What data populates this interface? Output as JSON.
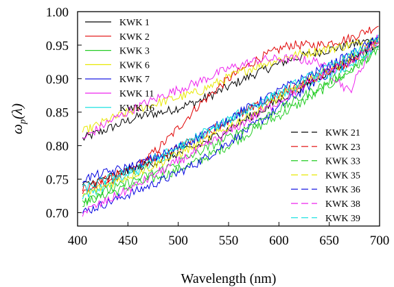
{
  "chart_data": {
    "type": "line",
    "title": "",
    "xlabel": "Wavelength (nm)",
    "ylabel": "ω_p(λ)",
    "ylabel_parts": {
      "symbol": "ω",
      "subscript": "p",
      "argument": "(λ)"
    },
    "xlim": [
      400,
      700
    ],
    "ylim": [
      0.68,
      1.0
    ],
    "xticks": [
      400,
      450,
      500,
      550,
      600,
      650,
      700
    ],
    "yticks": [
      0.7,
      0.75,
      0.8,
      0.85,
      0.9,
      0.95,
      1.0
    ],
    "grid": false,
    "legends": [
      {
        "placement": "top-left",
        "entries": [
          "KWK 1",
          "KWK 2",
          "KWK 3",
          "KWK 6",
          "KWK 7",
          "KWK 11",
          "KWK 16"
        ]
      },
      {
        "placement": "bottom-right",
        "entries": [
          "KWK 21",
          "KWK 23",
          "KWK 33",
          "KWK 35",
          "KWK 36",
          "KWK 38",
          "KWK 39"
        ]
      }
    ],
    "x": [
      405,
      430,
      460,
      490,
      520,
      550,
      580,
      610,
      640,
      670,
      700
    ],
    "series": [
      {
        "name": "KWK 1",
        "color": "#000000",
        "dash": "solid",
        "values": [
          0.81,
          0.825,
          0.843,
          0.852,
          0.866,
          0.888,
          0.91,
          0.928,
          0.94,
          0.95,
          0.96
        ]
      },
      {
        "name": "KWK 2",
        "color": "#e00000",
        "dash": "solid",
        "values": [
          0.73,
          0.747,
          0.768,
          0.81,
          0.86,
          0.9,
          0.93,
          0.95,
          0.95,
          0.96,
          0.98
        ]
      },
      {
        "name": "KWK 3",
        "color": "#22cc22",
        "dash": "solid",
        "values": [
          0.715,
          0.728,
          0.743,
          0.758,
          0.777,
          0.8,
          0.828,
          0.853,
          0.88,
          0.91,
          0.945
        ]
      },
      {
        "name": "KWK 6",
        "color": "#e8e800",
        "dash": "solid",
        "values": [
          0.82,
          0.838,
          0.855,
          0.868,
          0.88,
          0.902,
          0.92,
          0.933,
          0.942,
          0.95,
          0.96
        ]
      },
      {
        "name": "KWK 7",
        "color": "#0000e0",
        "dash": "solid",
        "values": [
          0.7,
          0.715,
          0.733,
          0.752,
          0.775,
          0.805,
          0.835,
          0.868,
          0.9,
          0.925,
          0.96
        ]
      },
      {
        "name": "KWK 11",
        "color": "#ee22ee",
        "dash": "solid",
        "values": [
          0.81,
          0.835,
          0.858,
          0.878,
          0.895,
          0.915,
          0.928,
          0.93,
          0.925,
          0.88,
          0.97
        ]
      },
      {
        "name": "KWK 16",
        "color": "#00dddd",
        "dash": "solid",
        "values": [
          0.725,
          0.742,
          0.762,
          0.788,
          0.815,
          0.84,
          0.862,
          0.882,
          0.9,
          0.92,
          0.95
        ]
      },
      {
        "name": "KWK 21",
        "color": "#000000",
        "dash": "dashed",
        "values": [
          0.74,
          0.752,
          0.767,
          0.782,
          0.8,
          0.825,
          0.85,
          0.877,
          0.903,
          0.928,
          0.955
        ]
      },
      {
        "name": "KWK 23",
        "color": "#e00000",
        "dash": "dashed",
        "values": [
          0.735,
          0.75,
          0.77,
          0.79,
          0.812,
          0.838,
          0.86,
          0.883,
          0.905,
          0.925,
          0.96
        ]
      },
      {
        "name": "KWK 33",
        "color": "#22cc22",
        "dash": "dashed",
        "values": [
          0.718,
          0.733,
          0.75,
          0.768,
          0.79,
          0.812,
          0.837,
          0.862,
          0.887,
          0.912,
          0.945
        ]
      },
      {
        "name": "KWK 35",
        "color": "#e8e800",
        "dash": "dashed",
        "values": [
          0.725,
          0.742,
          0.76,
          0.78,
          0.802,
          0.828,
          0.853,
          0.88,
          0.905,
          0.93,
          0.955
        ]
      },
      {
        "name": "KWK 36",
        "color": "#0000e0",
        "dash": "dashed",
        "values": [
          0.75,
          0.76,
          0.772,
          0.79,
          0.813,
          0.84,
          0.865,
          0.89,
          0.912,
          0.935,
          0.96
        ]
      },
      {
        "name": "KWK 38",
        "color": "#ee22ee",
        "dash": "dashed",
        "values": [
          0.7,
          0.718,
          0.742,
          0.768,
          0.793,
          0.82,
          0.848,
          0.875,
          0.903,
          0.925,
          0.955
        ]
      },
      {
        "name": "KWK 39",
        "color": "#00dddd",
        "dash": "dashed",
        "values": [
          0.735,
          0.75,
          0.768,
          0.79,
          0.812,
          0.838,
          0.862,
          0.887,
          0.91,
          0.933,
          0.96
        ]
      }
    ]
  }
}
